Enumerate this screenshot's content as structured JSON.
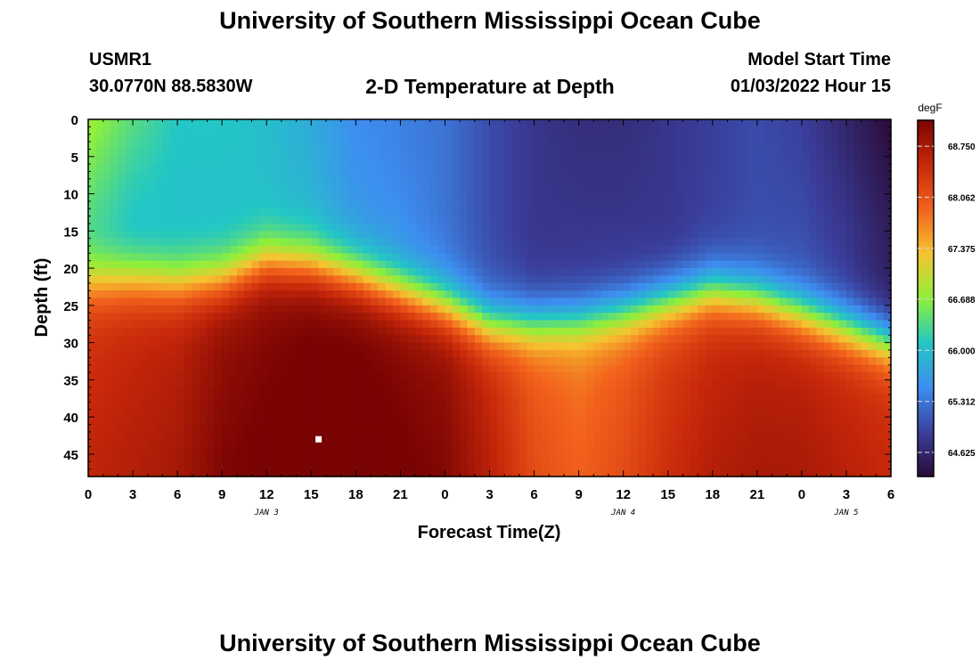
{
  "header": {
    "title": "University of Southern Mississippi Ocean Cube",
    "station_id": "USMR1",
    "coords": "30.0770N  88.5830W",
    "chart_title": "2-D Temperature at Depth",
    "start_label": "Model Start Time",
    "start_value": "01/03/2022 Hour 15"
  },
  "footer": {
    "title": "University of Southern Mississippi Ocean Cube"
  },
  "colors": {
    "scale": [
      "#2a0b38",
      "#3a3f9c",
      "#3d8ef0",
      "#23c7c4",
      "#8ff03a",
      "#f6c430",
      "#f2621c",
      "#c7280a",
      "#7a0403"
    ]
  },
  "chart_data": {
    "type": "heatmap",
    "xlabel": "Forecast Time(Z)",
    "ylabel": "Depth (ft)",
    "x_range": [
      0,
      54
    ],
    "y_range": [
      0,
      48
    ],
    "y_reversed": true,
    "x_ticks": [
      "0",
      "3",
      "6",
      "9",
      "12",
      "15",
      "18",
      "21",
      "0",
      "3",
      "6",
      "9",
      "12",
      "15",
      "18",
      "21",
      "0",
      "3",
      "6"
    ],
    "y_ticks": [
      0,
      5,
      10,
      15,
      20,
      25,
      30,
      35,
      40,
      45
    ],
    "date_labels": [
      {
        "label": "JAN 3",
        "hour": 12
      },
      {
        "label": "JAN 4",
        "hour": 36
      },
      {
        "label": "JAN 5",
        "hour": 51
      }
    ],
    "colorbar": {
      "unit": "degF",
      "min": 64.3,
      "max": 69.1,
      "ticks": [
        "68.750",
        "68.062",
        "67.375",
        "66.688",
        "66.000",
        "65.312",
        "64.625"
      ]
    },
    "marker": {
      "hour": 15.5,
      "depth": 43
    },
    "model": {
      "surface_x": [
        0,
        3,
        6,
        9,
        12,
        15,
        18,
        21,
        24,
        27,
        30,
        33,
        36,
        39,
        42,
        45,
        48,
        51,
        54
      ],
      "surface_v": [
        66.8,
        66.4,
        66.1,
        66.1,
        66.0,
        65.8,
        65.5,
        65.4,
        65.3,
        65.0,
        64.8,
        64.7,
        64.7,
        64.8,
        64.9,
        65.0,
        64.9,
        64.6,
        64.3
      ],
      "upper_x": [
        0,
        3,
        6,
        9,
        12,
        15,
        18,
        21,
        24,
        27,
        30,
        33,
        36,
        39,
        42,
        45,
        48,
        51,
        54
      ],
      "upper_v": [
        66.3,
        66.0,
        66.0,
        66.0,
        66.0,
        65.9,
        65.6,
        65.5,
        65.3,
        65.0,
        64.8,
        64.8,
        64.8,
        64.8,
        64.9,
        65.0,
        65.0,
        64.8,
        64.5
      ],
      "thermocline_x": [
        0,
        3,
        6,
        9,
        12,
        15,
        18,
        21,
        24,
        27,
        30,
        33,
        36,
        39,
        42,
        45,
        48,
        51,
        54
      ],
      "thermocline_depth": [
        22,
        21.5,
        22,
        21.5,
        19,
        19.5,
        21,
        23,
        25,
        27.5,
        27.5,
        27,
        26,
        24.5,
        23,
        24,
        26,
        28,
        30
      ],
      "deep_x": [
        0,
        3,
        6,
        9,
        12,
        15,
        18,
        21,
        24,
        27,
        30,
        33,
        36,
        39,
        42,
        45,
        48,
        51,
        54
      ],
      "deep_v": [
        68.4,
        68.5,
        68.6,
        68.9,
        69.0,
        69.1,
        69.1,
        69.0,
        68.9,
        68.5,
        68.0,
        67.8,
        68.0,
        68.3,
        68.5,
        68.6,
        68.6,
        68.5,
        68.4
      ]
    }
  }
}
